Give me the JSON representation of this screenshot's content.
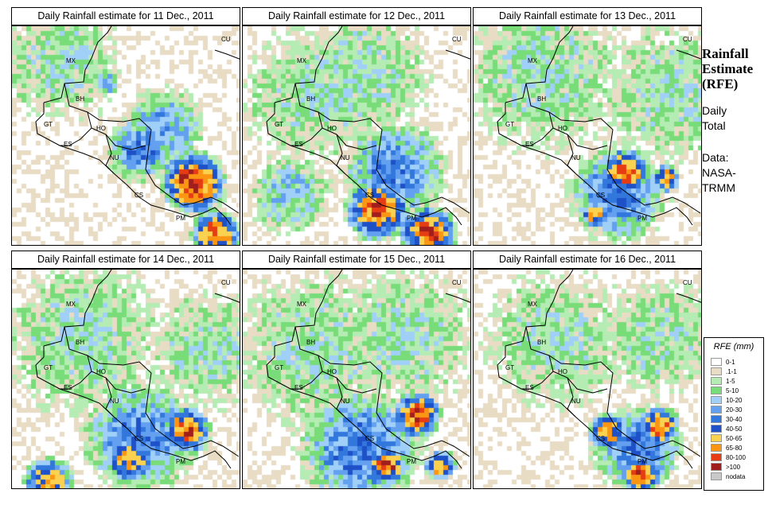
{
  "panels": [
    {
      "title": "Daily Rainfall estimate for  11 Dec., 2011",
      "pattern": "a"
    },
    {
      "title": "Daily Rainfall estimate for  12 Dec., 2011",
      "pattern": "b"
    },
    {
      "title": "Daily Rainfall estimate for  13 Dec., 2011",
      "pattern": "c"
    },
    {
      "title": "Daily Rainfall estimate for  14 Dec., 2011",
      "pattern": "d"
    },
    {
      "title": "Daily Rainfall estimate for  15 Dec., 2011",
      "pattern": "e"
    },
    {
      "title": "Daily Rainfall estimate for  16 Dec., 2011",
      "pattern": "f"
    }
  ],
  "country_labels": {
    "cu": "CU",
    "mx": "MX",
    "bh": "BH",
    "gt": "GT",
    "ho": "HO",
    "es": "ES",
    "nu": "NU",
    "cs": "CS",
    "pm": "PM"
  },
  "side": {
    "title_line1": "Rainfall",
    "title_line2": "Estimate",
    "title_line3": "(RFE)",
    "daily_line1": "Daily",
    "daily_line2": "Total",
    "data_line1": "Data:",
    "data_line2": "NASA-",
    "data_line3": "TRMM"
  },
  "legend": {
    "title": "RFE (mm)",
    "items": [
      {
        "label": "0-1",
        "color": "#ffffff"
      },
      {
        "label": ".1-1",
        "color": "#e8dcc4"
      },
      {
        "label": "1-5",
        "color": "#b4ecb4"
      },
      {
        "label": "5-10",
        "color": "#78dc78"
      },
      {
        "label": "10-20",
        "color": "#a0d0f8"
      },
      {
        "label": "20-30",
        "color": "#64a0f0"
      },
      {
        "label": "30-40",
        "color": "#3278dc"
      },
      {
        "label": "40-50",
        "color": "#1e50c8"
      },
      {
        "label": "50-65",
        "color": "#fad250"
      },
      {
        "label": "65-80",
        "color": "#fa9614"
      },
      {
        "label": "80-100",
        "color": "#e63c14"
      },
      {
        "label": ">100",
        "color": "#a01e1e"
      },
      {
        "label": "nodata",
        "color": "#c8c8c8"
      }
    ]
  }
}
